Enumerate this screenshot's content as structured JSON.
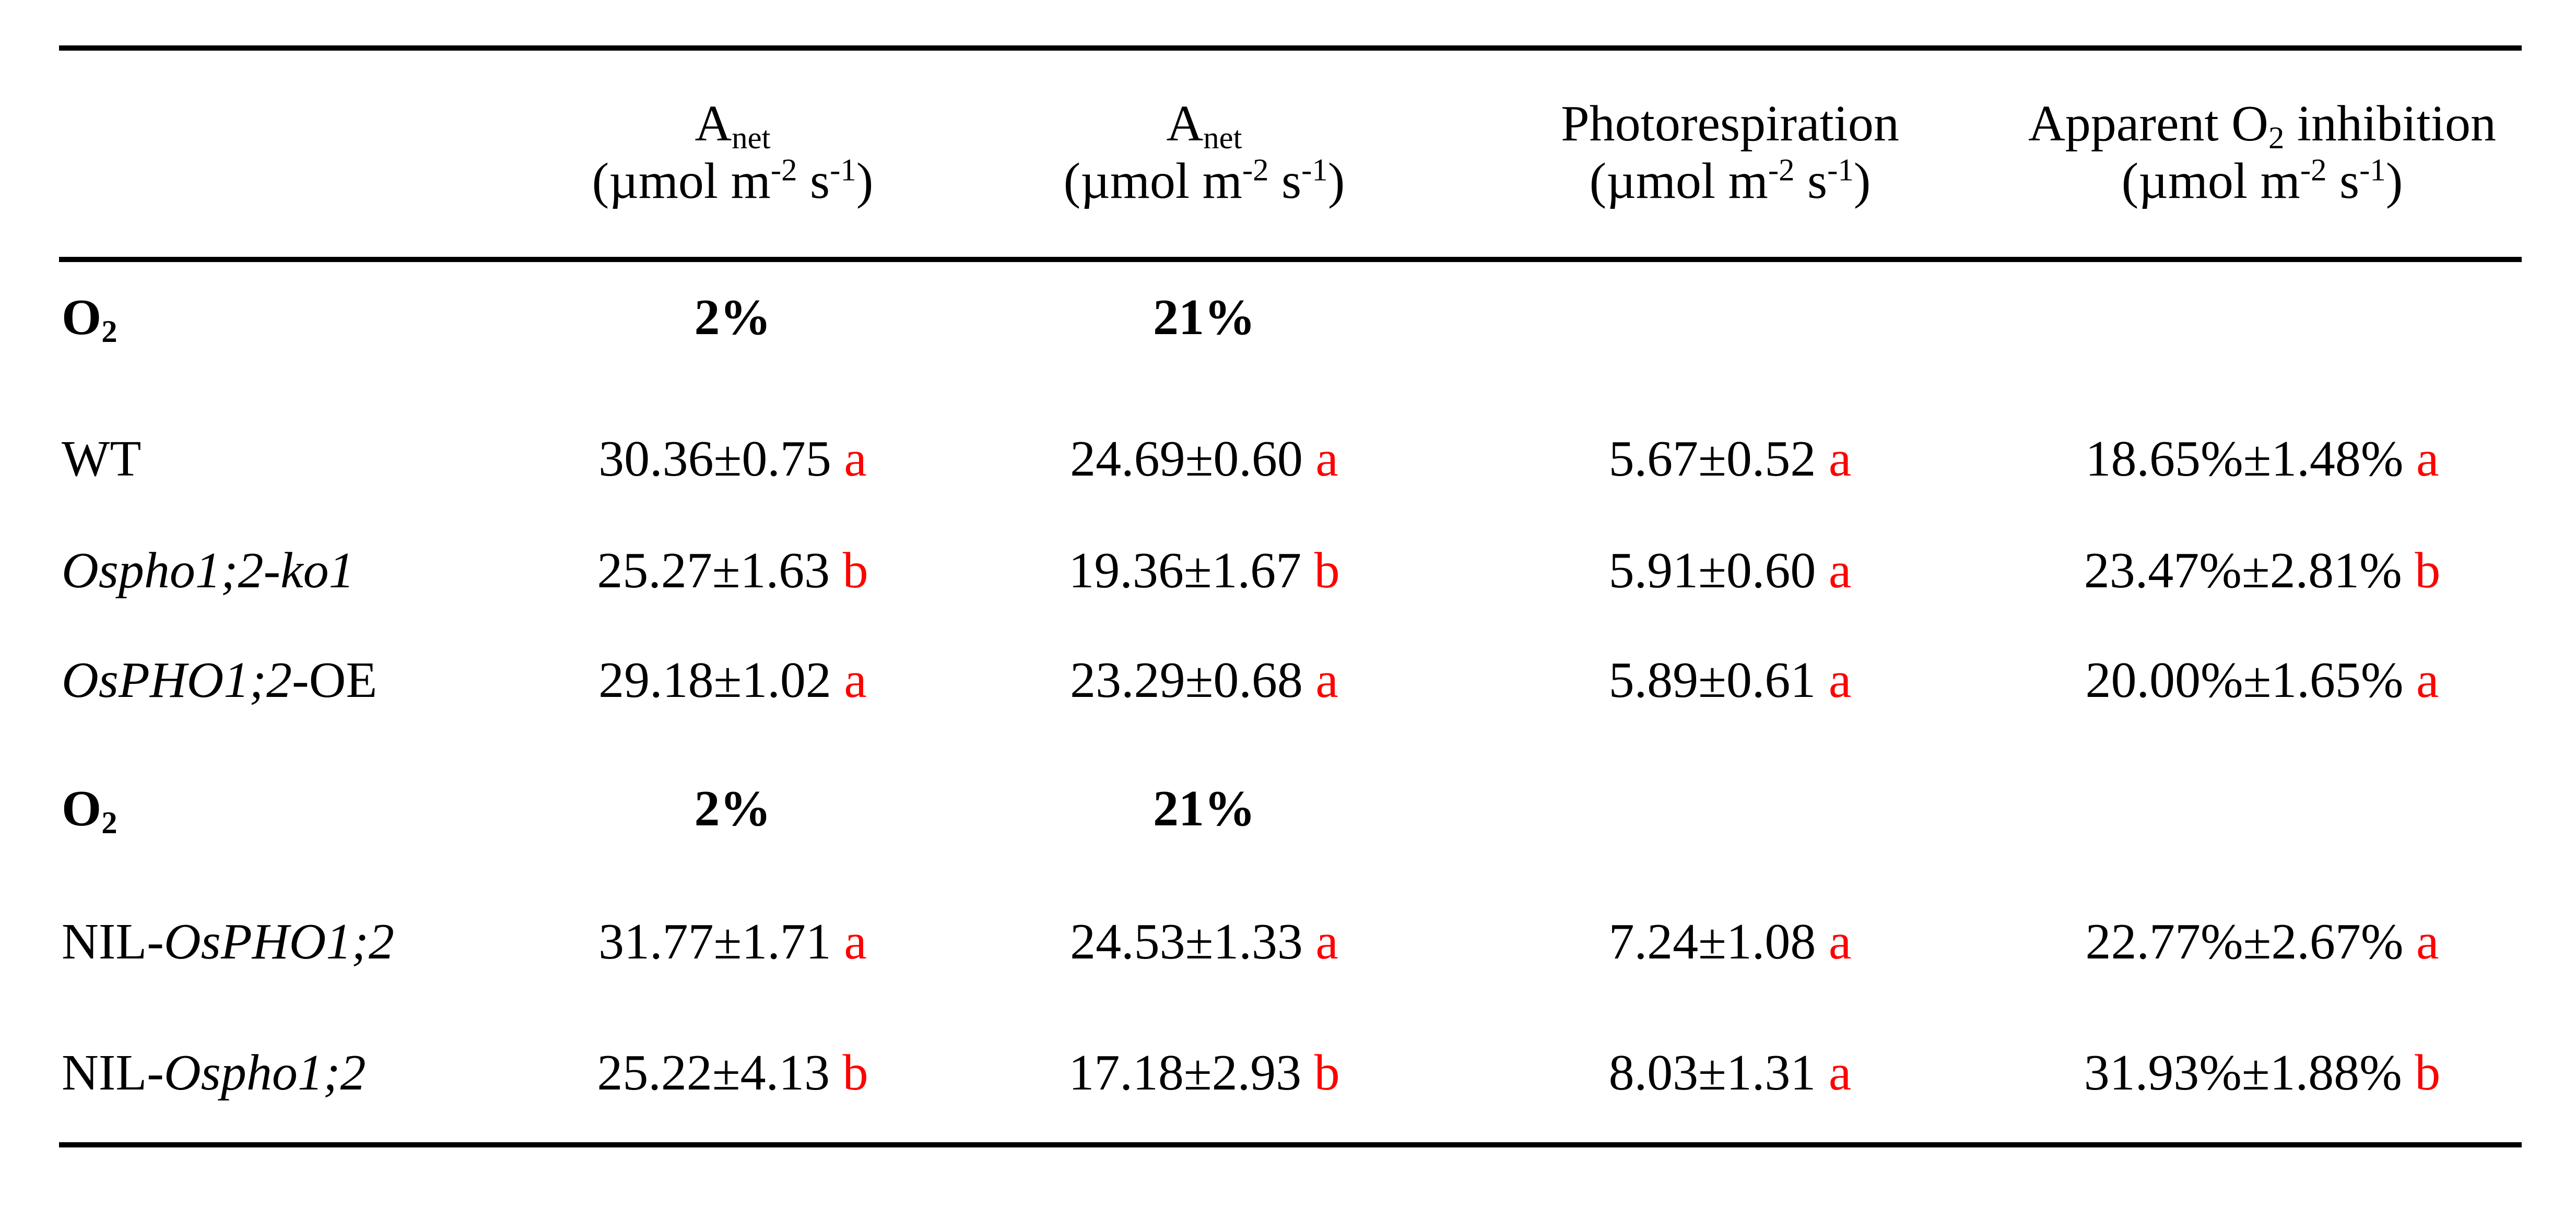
{
  "header": {
    "columns": [
      {
        "title": "A",
        "title_sub": "net",
        "unit": "(µmol m",
        "unit_sup1": "-2",
        "unit_mid": " s",
        "unit_sup2": "-1",
        "unit_end": ")"
      },
      {
        "title": "A",
        "title_sub": "net",
        "unit": "(µmol m",
        "unit_sup1": "-2",
        "unit_mid": " s",
        "unit_sup2": "-1",
        "unit_end": ")"
      },
      {
        "title": "Photorespiration",
        "title_sub": "",
        "unit": "(µmol m",
        "unit_sup1": "-2",
        "unit_mid": " s",
        "unit_sup2": "-1",
        "unit_end": ")"
      },
      {
        "title": "Apparent O",
        "title_sub": "2",
        "title_end": " inhibition",
        "unit": "(µmol m",
        "unit_sup1": "-2",
        "unit_mid": " s",
        "unit_sup2": "-1",
        "unit_end": ")"
      }
    ]
  },
  "groups": [
    {
      "label": "O",
      "label_sub": "2",
      "o2_levels": [
        "2%",
        "21%"
      ],
      "rows": [
        {
          "pre": "WT",
          "ital": "",
          "post": "",
          "cells": [
            [
              "30.36±0.75",
              "a"
            ],
            [
              "24.69±0.60",
              "a"
            ],
            [
              "5.67±0.52",
              "a"
            ],
            [
              "18.65%±1.48%",
              "a"
            ]
          ]
        },
        {
          "pre": "",
          "ital": "Ospho1;2-ko1",
          "post": "",
          "cells": [
            [
              "25.27±1.63",
              "b"
            ],
            [
              "19.36±1.67",
              "b"
            ],
            [
              "5.91±0.60",
              "a"
            ],
            [
              "23.47%±2.81%",
              "b"
            ]
          ]
        },
        {
          "pre": "",
          "ital": "OsPHO1;2",
          "post": "-OE",
          "cells": [
            [
              "29.18±1.02",
              "a"
            ],
            [
              "23.29±0.68",
              "a"
            ],
            [
              "5.89±0.61",
              "a"
            ],
            [
              "20.00%±1.65%",
              "a"
            ]
          ]
        }
      ]
    },
    {
      "label": "O",
      "label_sub": "2",
      "o2_levels": [
        "2%",
        "21%"
      ],
      "rows": [
        {
          "pre": "NIL-",
          "ital": "OsPHO1;2",
          "post": "",
          "cells": [
            [
              "31.77±1.71",
              "a"
            ],
            [
              "24.53±1.33",
              "a"
            ],
            [
              "7.24±1.08",
              "a"
            ],
            [
              "22.77%±2.67%",
              "a"
            ]
          ]
        },
        {
          "pre": "NIL-",
          "ital": "Ospho1;2",
          "post": "",
          "cells": [
            [
              "25.22±4.13",
              "b"
            ],
            [
              "17.18±2.93",
              "b"
            ],
            [
              "8.03±1.31",
              "a"
            ],
            [
              "31.93%±1.88%",
              "b"
            ]
          ]
        }
      ]
    }
  ],
  "colors": {
    "significance_letter": "#ff0000",
    "text": "#000000"
  }
}
